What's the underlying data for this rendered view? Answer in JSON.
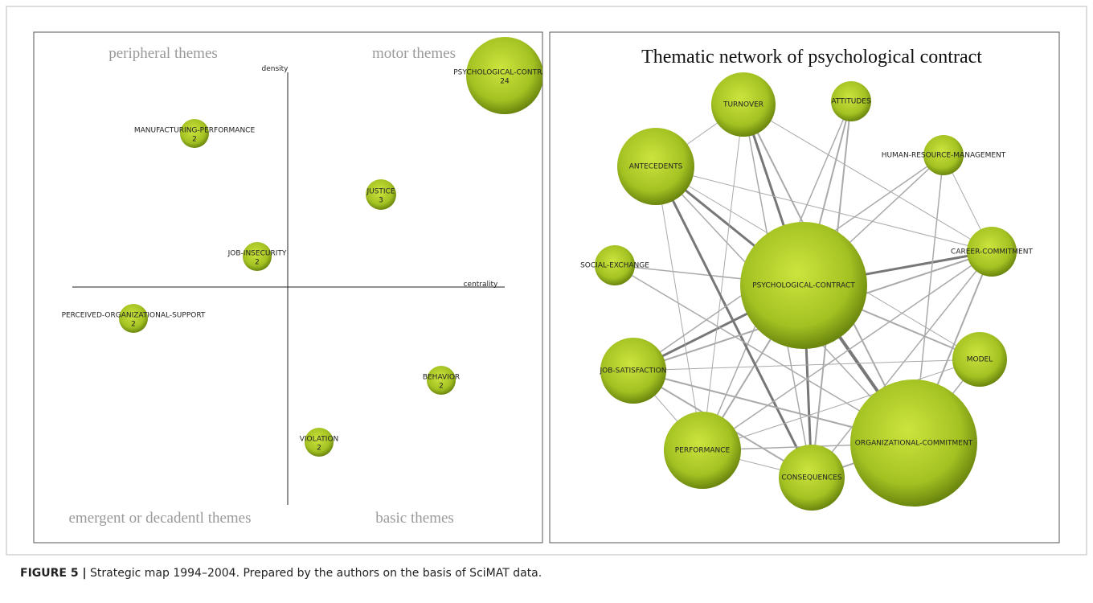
{
  "strategic_map": {
    "quadrants": [
      "peripheral themes",
      "motor themes",
      "emergent or decadentl themes",
      "basic themes"
    ],
    "axes": {
      "y": "density",
      "x": "centrality"
    },
    "themes": [
      {
        "label": "PSYCHOLOGICAL-CONTRACT",
        "count": 24
      },
      {
        "label": "MANUFACTURING-PERFORMANCE",
        "count": 2
      },
      {
        "label": "JUSTICE",
        "count": 3
      },
      {
        "label": "JOB-INSECURITY",
        "count": 2
      },
      {
        "label": "PERCEIVED-ORGANIZATIONAL-SUPPORT",
        "count": 2
      },
      {
        "label": "BEHAVIOR",
        "count": 2
      },
      {
        "label": "VIOLATION",
        "count": 2
      }
    ]
  },
  "network": {
    "title": "Thematic network of psychological contract",
    "nodes": [
      "TURNOVER",
      "ATTITUDES",
      "ANTECEDENTS",
      "HUMAN-RESOURCE-MANAGEMENT",
      "SOCIAL-EXCHANGE",
      "PSYCHOLOGICAL-CONTRACT",
      "CAREER-COMMITMENT",
      "MODEL",
      "JOB-SATISFACTION",
      "PERFORMANCE",
      "CONSEQUENCES",
      "ORGANIZATIONAL-COMMITMENT"
    ]
  },
  "caption": {
    "label": "FIGURE 5 |",
    "text": "Strategic map 1994–2004. Prepared by the authors on the basis of SciMAT data."
  }
}
